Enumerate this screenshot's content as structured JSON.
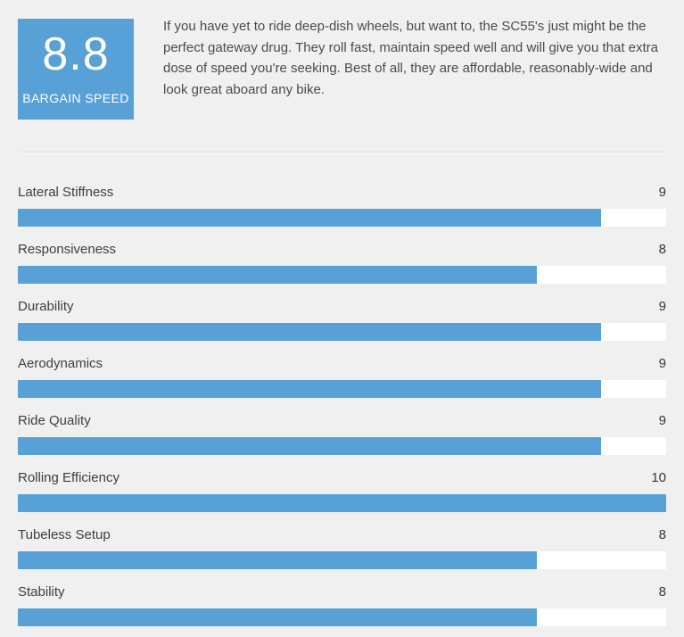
{
  "score_box": {
    "score": "8.8",
    "label": "BARGAIN SPEED",
    "bg_color": "#57a1d7",
    "text_color": "#ffffff"
  },
  "summary": "If you have yet to ride deep-dish wheels, but want to, the SC55's just might be the perfect gateway drug. They roll fast, maintain speed well and will give you that extra dose of speed you're seeking. Best of all, they are affordable, reasonably-wide and look great aboard any bike.",
  "chart_data": {
    "type": "bar",
    "orientation": "horizontal",
    "title": "",
    "categories": [
      "Lateral Stiffness",
      "Responsiveness",
      "Durability",
      "Aerodynamics",
      "Ride Quality",
      "Rolling Efficiency",
      "Tubeless Setup",
      "Stability"
    ],
    "values": [
      9,
      8,
      9,
      9,
      9,
      10,
      8,
      8
    ],
    "value_max": 10,
    "value_labels_shown": true,
    "bar_color": "#57a1d7",
    "track_color": "#ffffff",
    "label_color": "#3e3e3e",
    "grid": false,
    "legend": false
  },
  "page": {
    "background_color": "#f0f0f0"
  }
}
